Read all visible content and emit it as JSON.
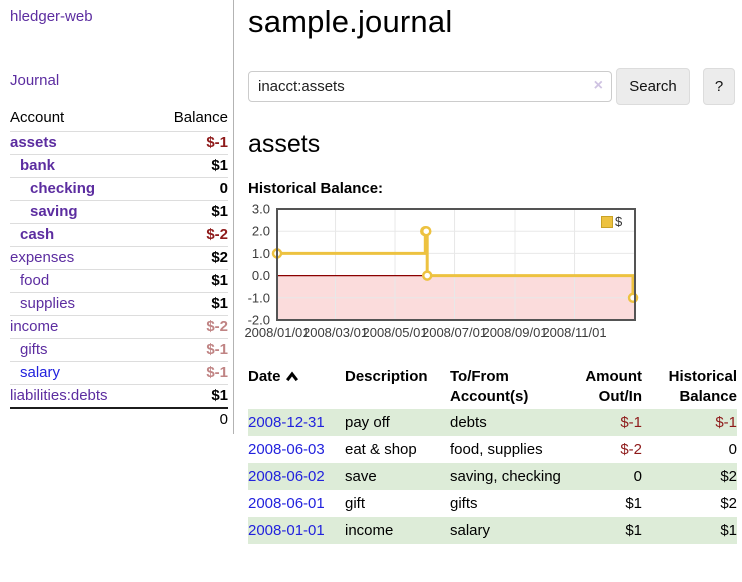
{
  "sidebar": {
    "app_title": "hledger-web",
    "journal_link": "Journal",
    "accounts": {
      "header_account": "Account",
      "header_balance": "Balance",
      "rows": [
        {
          "name": "assets",
          "balance": "$-1"
        },
        {
          "name": "bank",
          "balance": "$1"
        },
        {
          "name": "checking",
          "balance": "0"
        },
        {
          "name": "saving",
          "balance": "$1"
        },
        {
          "name": "cash",
          "balance": "$-2"
        },
        {
          "name": "expenses",
          "balance": "$2"
        },
        {
          "name": "food",
          "balance": "$1"
        },
        {
          "name": "supplies",
          "balance": "$1"
        },
        {
          "name": "income",
          "balance": "$-2"
        },
        {
          "name": "gifts",
          "balance": "$-1"
        },
        {
          "name": "salary",
          "balance": "$-1"
        },
        {
          "name": "liabilities:debts",
          "balance": "$1"
        }
      ],
      "total": "0"
    }
  },
  "main": {
    "title": "sample.journal",
    "search": {
      "query": "inacct:assets",
      "clear": "×",
      "search_button": "Search",
      "help_button": "?"
    },
    "account_heading": "assets",
    "section_label": "Historical Balance:"
  },
  "chart_data": {
    "type": "line",
    "step": true,
    "title": "Historical Balance",
    "series": [
      {
        "name": "$",
        "color": "#edc240",
        "points": [
          [
            "2008-01-01",
            1
          ],
          [
            "2008-06-01",
            2
          ],
          [
            "2008-06-02",
            2
          ],
          [
            "2008-06-03",
            0
          ],
          [
            "2008-12-31",
            -1
          ]
        ]
      }
    ],
    "x_ticks": [
      "2008/01/01",
      "2008/03/01",
      "2008/05/01",
      "2008/07/01",
      "2008/09/01",
      "2008/11/01"
    ],
    "y_ticks": [
      "3.0",
      "2.0",
      "1.0",
      "0.0",
      "-1.0",
      "-2.0"
    ],
    "xlim": [
      "2008-01-01",
      "2009-01-02"
    ],
    "ylim": [
      -2,
      3
    ],
    "grid": true,
    "legend_position": "top-right",
    "grid_color": "#e8e8e8",
    "border_color": "#545454",
    "negative_region_color": "#fbdcdc",
    "zero_line_color": "#8b0000"
  },
  "register": {
    "headers": {
      "date": "Date",
      "description": "Description",
      "accounts": "To/From Account(s)",
      "amount": "Amount Out/In",
      "balance": "Historical Balance"
    },
    "rows": [
      {
        "date": "2008-12-31",
        "description": "pay off",
        "accounts": "debts",
        "amount": "$-1",
        "balance": "$-1"
      },
      {
        "date": "2008-06-03",
        "description": "eat & shop",
        "accounts": "food, supplies",
        "amount": "$-2",
        "balance": "0"
      },
      {
        "date": "2008-06-02",
        "description": "save",
        "accounts": "saving, checking",
        "amount": "0",
        "balance": "$2"
      },
      {
        "date": "2008-06-01",
        "description": "gift",
        "accounts": "gifts",
        "amount": "$1",
        "balance": "$2"
      },
      {
        "date": "2008-01-01",
        "description": "income",
        "accounts": "salary",
        "amount": "$1",
        "balance": "$1"
      }
    ]
  },
  "colors": {
    "link_purple": "#5c2da0",
    "link_blue": "#2222dd",
    "negative": "#8e1a1a",
    "negative_light": "#c08484",
    "row_green": "#ddecd8",
    "chart_line": "#edc240"
  }
}
